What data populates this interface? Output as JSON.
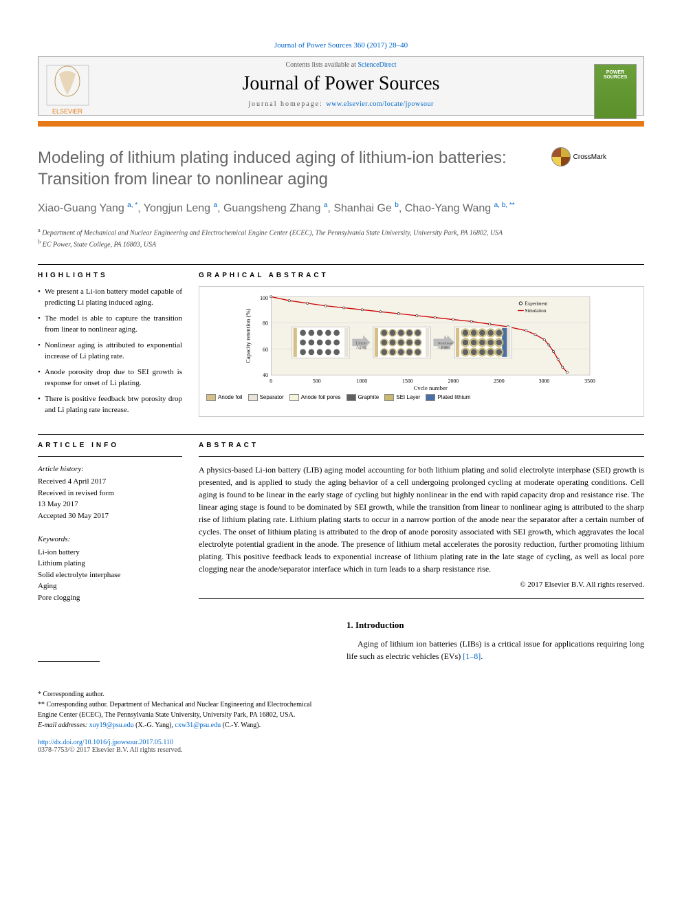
{
  "header": {
    "citation": "Journal of Power Sources 360 (2017) 28–40",
    "contents_prefix": "Contents lists available at ",
    "contents_link": "ScienceDirect",
    "journal_name": "Journal of Power Sources",
    "homepage_label": "journal homepage: ",
    "homepage_url": "www.elsevier.com/locate/jpowsour",
    "cover_text": "POWER SOURCES"
  },
  "article": {
    "title": "Modeling of lithium plating induced aging of lithium-ion batteries: Transition from linear to nonlinear aging",
    "crossmark_label": "CrossMark",
    "authors_html": "Xiao-Guang Yang <sup>a, *</sup>, Yongjun Leng <sup>a</sup>, Guangsheng Zhang <sup>a</sup>, Shanhai Ge <sup>b</sup>, Chao-Yang Wang <sup>a, b, **</sup>",
    "affiliations": [
      {
        "sup": "a",
        "text": "Department of Mechanical and Nuclear Engineering and Electrochemical Engine Center (ECEC), The Pennsylvania State University, University Park, PA 16802, USA"
      },
      {
        "sup": "b",
        "text": "EC Power, State College, PA 16803, USA"
      }
    ]
  },
  "highlights": {
    "label": "HIGHLIGHTS",
    "items": [
      "We present a Li-ion battery model capable of predicting Li plating induced aging.",
      "The model is able to capture the transition from linear to nonlinear aging.",
      "Nonlinear aging is attributed to exponential increase of Li plating rate.",
      "Anode porosity drop due to SEI growth is response for onset of Li plating.",
      "There is positive feedback btw porosity drop and Li plating rate increase."
    ]
  },
  "graphical_abstract": {
    "label": "GRAPHICAL ABSTRACT",
    "chart": {
      "type": "line",
      "xlabel": "Cycle number",
      "ylabel": "Capacity retention (%)",
      "xlim": [
        0,
        3500
      ],
      "ylim": [
        40,
        100
      ],
      "xticks": [
        0,
        500,
        1000,
        1500,
        2000,
        2500,
        3000,
        3500
      ],
      "yticks": [
        40,
        60,
        80,
        100
      ],
      "background_color": "#f5f2e8",
      "grid_color": "#cccccc",
      "series": [
        {
          "name": "Experiment",
          "type": "scatter",
          "marker": "circle",
          "marker_size": 3,
          "color": "#000000",
          "fill": "#ffffff"
        },
        {
          "name": "Simulation",
          "type": "line",
          "color": "#cc0000",
          "line_width": 1.5
        }
      ],
      "data_points": [
        [
          0,
          100
        ],
        [
          200,
          97
        ],
        [
          400,
          95
        ],
        [
          600,
          93
        ],
        [
          800,
          91.5
        ],
        [
          1000,
          90
        ],
        [
          1200,
          88.5
        ],
        [
          1400,
          87
        ],
        [
          1600,
          85.5
        ],
        [
          1800,
          84
        ],
        [
          2000,
          82.5
        ],
        [
          2200,
          81
        ],
        [
          2400,
          79
        ],
        [
          2600,
          77
        ],
        [
          2800,
          74
        ],
        [
          2900,
          71
        ],
        [
          3000,
          67
        ],
        [
          3050,
          63
        ],
        [
          3100,
          58
        ],
        [
          3150,
          52
        ],
        [
          3200,
          46
        ],
        [
          3250,
          42
        ]
      ],
      "annotations": [
        {
          "text": "Linear Aging",
          "x_range": [
            500,
            1800
          ]
        },
        {
          "text": "Linear Aging",
          "x_range": [
            1800,
            2600
          ]
        },
        {
          "text": "Nonlinear Aging",
          "x_range": [
            2600,
            3200
          ]
        }
      ]
    },
    "legend": [
      {
        "label": "Anode foil",
        "color": "#d4c088"
      },
      {
        "label": "Separator",
        "color": "#e8e4d8"
      },
      {
        "label": "Anode foil pores",
        "color": "#f5f5dc"
      },
      {
        "label": "Graphite",
        "color": "#606060"
      },
      {
        "label": "SEI Layer",
        "color": "#c8b870"
      },
      {
        "label": "Plated lithium",
        "color": "#4a6fa5"
      }
    ]
  },
  "article_info": {
    "label": "ARTICLE INFO",
    "history_head": "Article history:",
    "history": [
      "Received 4 April 2017",
      "Received in revised form",
      "13 May 2017",
      "Accepted 30 May 2017"
    ],
    "keywords_head": "Keywords:",
    "keywords": [
      "Li-ion battery",
      "Lithium plating",
      "Solid electrolyte interphase",
      "Aging",
      "Pore clogging"
    ]
  },
  "abstract": {
    "label": "ABSTRACT",
    "text": "A physics-based Li-ion battery (LIB) aging model accounting for both lithium plating and solid electrolyte interphase (SEI) growth is presented, and is applied to study the aging behavior of a cell undergoing prolonged cycling at moderate operating conditions. Cell aging is found to be linear in the early stage of cycling but highly nonlinear in the end with rapid capacity drop and resistance rise. The linear aging stage is found to be dominated by SEI growth, while the transition from linear to nonlinear aging is attributed to the sharp rise of lithium plating rate. Lithium plating starts to occur in a narrow portion of the anode near the separator after a certain number of cycles. The onset of lithium plating is attributed to the drop of anode porosity associated with SEI growth, which aggravates the local electrolyte potential gradient in the anode. The presence of lithium metal accelerates the porosity reduction, further promoting lithium plating. This positive feedback leads to exponential increase of lithium plating rate in the late stage of cycling, as well as local pore clogging near the anode/separator interface which in turn leads to a sharp resistance rise.",
    "copyright": "© 2017 Elsevier B.V. All rights reserved."
  },
  "footnotes": {
    "corr1": "* Corresponding author.",
    "corr2": "** Corresponding author. Department of Mechanical and Nuclear Engineering and Electrochemical Engine Center (ECEC), The Pennsylvania State University, University Park, PA 16802, USA.",
    "emails_label": "E-mail addresses: ",
    "email1": "xuy19@psu.edu",
    "email1_name": " (X.-G. Yang), ",
    "email2": "cxw31@psu.edu",
    "email2_name": " (C.-Y. Wang)."
  },
  "intro": {
    "heading": "1. Introduction",
    "text": "Aging of lithium ion batteries (LIBs) is a critical issue for applications requiring long life such as electric vehicles (EVs) ",
    "ref": "[1–8]"
  },
  "doi": {
    "link": "http://dx.doi.org/10.1016/j.jpowsour.2017.05.110",
    "issn": "0378-7753/© 2017 Elsevier B.V. All rights reserved."
  }
}
